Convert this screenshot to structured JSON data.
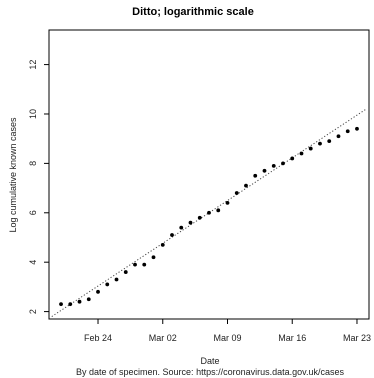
{
  "chart_data": {
    "type": "scatter",
    "title": "Ditto; logarithmic scale",
    "xlabel": "Date",
    "ylabel": "Log cumulative known cases",
    "caption": "By date of specimen. Source: https://coronavirus.data.gov.uk/cases",
    "x_ticks": [
      "Feb 24",
      "Mar 02",
      "Mar 09",
      "Mar 16",
      "Mar 23"
    ],
    "y_ticks": [
      2,
      4,
      6,
      8,
      10,
      12
    ],
    "ylim": [
      1.7,
      13.4
    ],
    "points": [
      {
        "x": "Feb 20",
        "y": 2.3
      },
      {
        "x": "Feb 21",
        "y": 2.3
      },
      {
        "x": "Feb 22",
        "y": 2.4
      },
      {
        "x": "Feb 23",
        "y": 2.5
      },
      {
        "x": "Feb 24",
        "y": 2.8
      },
      {
        "x": "Feb 25",
        "y": 3.1
      },
      {
        "x": "Feb 26",
        "y": 3.3
      },
      {
        "x": "Feb 27",
        "y": 3.6
      },
      {
        "x": "Feb 28",
        "y": 3.9
      },
      {
        "x": "Feb 29",
        "y": 3.9
      },
      {
        "x": "Mar 01",
        "y": 4.2
      },
      {
        "x": "Mar 02",
        "y": 4.7
      },
      {
        "x": "Mar 03",
        "y": 5.1
      },
      {
        "x": "Mar 04",
        "y": 5.4
      },
      {
        "x": "Mar 05",
        "y": 5.6
      },
      {
        "x": "Mar 06",
        "y": 5.8
      },
      {
        "x": "Mar 07",
        "y": 6.0
      },
      {
        "x": "Mar 08",
        "y": 6.1
      },
      {
        "x": "Mar 09",
        "y": 6.4
      },
      {
        "x": "Mar 10",
        "y": 6.8
      },
      {
        "x": "Mar 11",
        "y": 7.1
      },
      {
        "x": "Mar 12",
        "y": 7.5
      },
      {
        "x": "Mar 13",
        "y": 7.7
      },
      {
        "x": "Mar 14",
        "y": 7.9
      },
      {
        "x": "Mar 15",
        "y": 8.0
      },
      {
        "x": "Mar 16",
        "y": 8.2
      },
      {
        "x": "Mar 17",
        "y": 8.4
      },
      {
        "x": "Mar 18",
        "y": 8.6
      },
      {
        "x": "Mar 19",
        "y": 8.8
      },
      {
        "x": "Mar 20",
        "y": 8.9
      },
      {
        "x": "Mar 21",
        "y": 9.1
      },
      {
        "x": "Mar 22",
        "y": 9.3
      },
      {
        "x": "Mar 23",
        "y": 9.4
      }
    ],
    "trend_line": {
      "style": "dotted",
      "from": {
        "x": "Feb 19",
        "y": 1.8
      },
      "to": {
        "x": "Mar 24",
        "y": 10.2
      }
    },
    "grid": false,
    "legend": "none"
  }
}
